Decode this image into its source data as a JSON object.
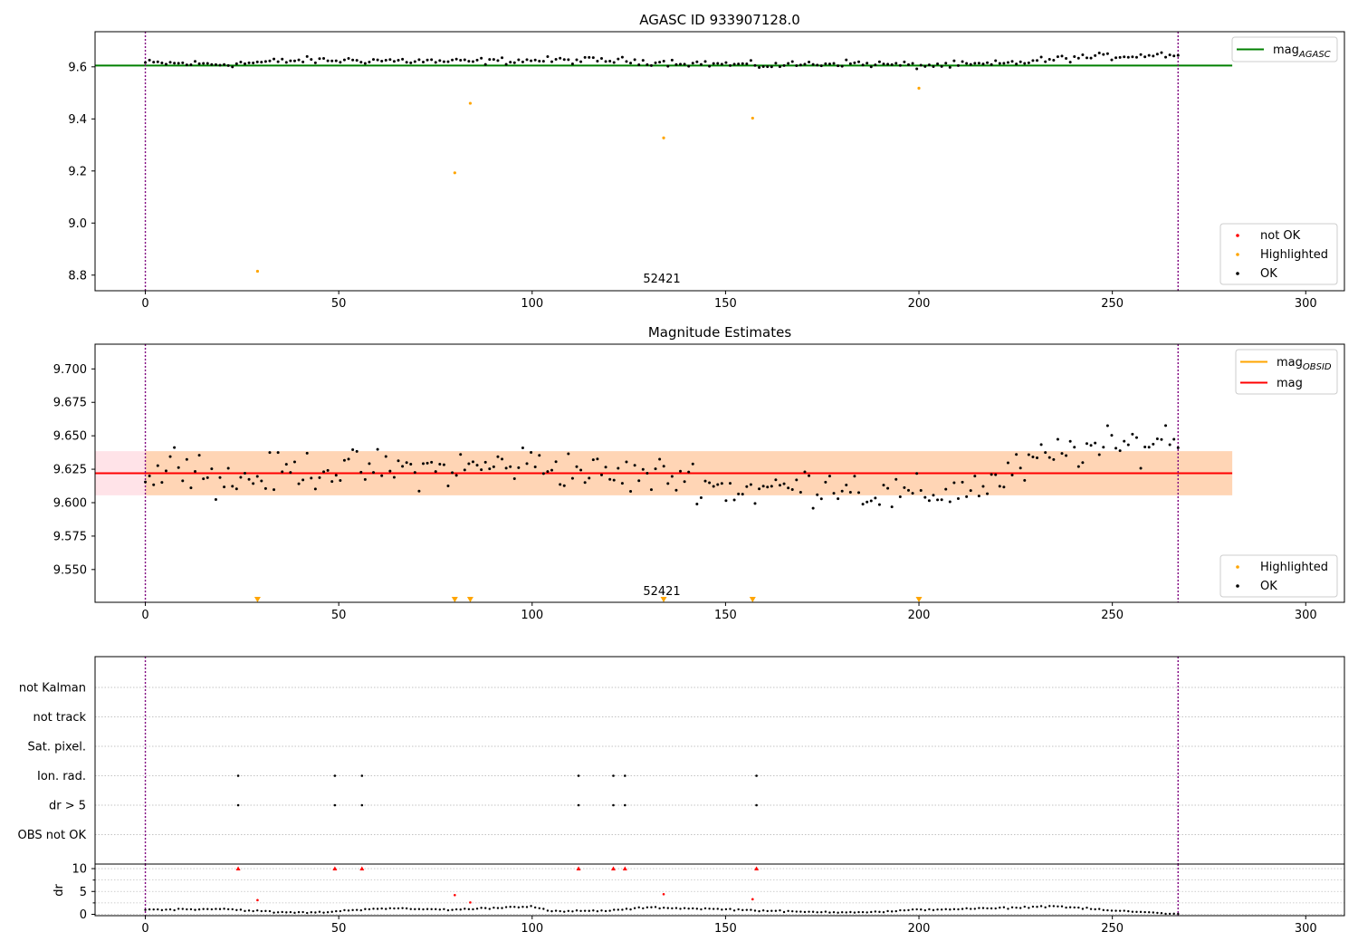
{
  "chart_data": [
    {
      "type": "scatter",
      "title": "AGASC ID 933907128.0",
      "annotation": "52421",
      "xlim": [
        -13,
        310
      ],
      "ylim": [
        8.74,
        9.735
      ],
      "xticks": [
        0,
        50,
        100,
        150,
        200,
        250,
        300
      ],
      "yticks": [
        8.8,
        9.0,
        9.2,
        9.4,
        9.6
      ],
      "ytick_labels": [
        "8.8",
        "9.0",
        "9.2",
        "9.4",
        "9.6"
      ],
      "vlines": [
        0,
        267
      ],
      "hline": {
        "name": "mag",
        "subscript": "AGASC",
        "value": 9.605,
        "xmax": 281,
        "color": "#008000"
      },
      "legend_lines": [
        {
          "name": "mag",
          "subscript": "AGASC",
          "color": "#008000"
        }
      ],
      "legend_points": [
        {
          "name": "not OK",
          "color": "#ff0000"
        },
        {
          "name": "Highlighted",
          "color": "#ffa500"
        },
        {
          "name": "OK",
          "color": "#000000"
        }
      ],
      "highlighted_points": {
        "x": [
          29,
          80,
          84,
          134,
          157,
          200
        ],
        "y": [
          8.815,
          9.193,
          9.46,
          9.327,
          9.403,
          9.518
        ]
      },
      "ok_points": {
        "smoothing": true,
        "x_start": 0,
        "x_end": 267,
        "knots_x": [
          0,
          20,
          40,
          60,
          80,
          100,
          120,
          140,
          160,
          180,
          200,
          220,
          240,
          250,
          267
        ],
        "knots_y": [
          9.615,
          9.61,
          9.625,
          9.625,
          9.62,
          9.625,
          9.625,
          9.615,
          9.605,
          9.615,
          9.605,
          9.61,
          9.635,
          9.64,
          9.65
        ],
        "noise": 0.012
      },
      "grid": false
    },
    {
      "type": "scatter",
      "title": "Magnitude Estimates",
      "annotation": "52421",
      "xlim": [
        -13,
        310
      ],
      "ylim": [
        9.5255,
        9.7185
      ],
      "xticks": [
        0,
        50,
        100,
        150,
        200,
        250,
        300
      ],
      "yticks": [
        9.55,
        9.575,
        9.6,
        9.625,
        9.65,
        9.675,
        9.7
      ],
      "ytick_labels": [
        "9.550",
        "9.575",
        "9.600",
        "9.625",
        "9.650",
        "9.675",
        "9.700"
      ],
      "vlines": [
        0,
        267
      ],
      "band_mag": {
        "low": 9.6055,
        "high": 9.6385,
        "xmax": 281,
        "color": "#ffc0cb"
      },
      "band_obsid": {
        "low": 9.6055,
        "high": 9.6385,
        "xmin": 0,
        "xmax": 281,
        "color": "#ffa500"
      },
      "mag_line": {
        "value": 9.622,
        "xmin": -13,
        "xmax": 281,
        "color": "#ff0000"
      },
      "legend_lines": [
        {
          "name": "mag",
          "subscript": "OBSID",
          "color": "#ffa500"
        },
        {
          "name": "mag",
          "subscript": "",
          "color": "#ff0000"
        }
      ],
      "legend_points": [
        {
          "name": "Highlighted",
          "color": "#ffa500"
        },
        {
          "name": "OK",
          "color": "#000000"
        }
      ],
      "highlighted_markers": {
        "x": [
          29,
          80,
          84,
          134,
          157,
          200
        ],
        "y": 9.5275
      },
      "ok_points": {
        "smoothing": true,
        "x_start": 0,
        "x_end": 267,
        "knots_x": [
          0,
          10,
          20,
          40,
          60,
          80,
          100,
          120,
          140,
          150,
          160,
          180,
          190,
          200,
          220,
          230,
          240,
          250,
          267
        ],
        "knots_y": [
          9.615,
          9.635,
          9.615,
          9.625,
          9.625,
          9.625,
          9.63,
          9.62,
          9.62,
          9.61,
          9.61,
          9.615,
          9.605,
          9.605,
          9.615,
          9.63,
          9.64,
          9.64,
          9.65
        ],
        "noise": 0.013
      },
      "grid": false
    },
    {
      "type": "scatter",
      "title": "",
      "xlim": [
        -13,
        310
      ],
      "vlines": [
        0,
        267
      ],
      "flag_labels": [
        "not Kalman",
        "not track",
        "Sat. pixel.",
        "Ion. rad.",
        "dr > 5",
        "OBS not OK"
      ],
      "flag_points": [
        {
          "flag": "Ion. rad.",
          "x": [
            24,
            49,
            56,
            112,
            121,
            124,
            158
          ]
        },
        {
          "flag": "dr > 5",
          "x": [
            24,
            49,
            56,
            112,
            121,
            124,
            158
          ]
        }
      ],
      "grid": true
    },
    {
      "type": "scatter",
      "title": "",
      "xlim": [
        -13,
        310
      ],
      "ylim": [
        -0.3,
        11
      ],
      "xticks": [
        0,
        50,
        100,
        150,
        200,
        250,
        300
      ],
      "yticks": [
        0,
        5,
        10
      ],
      "ytick_labels": [
        "0",
        "5",
        "10"
      ],
      "ylabel": "dr",
      "vlines": [
        0,
        267
      ],
      "red_triangles": {
        "x": [
          24,
          49,
          56,
          112,
          121,
          124,
          158
        ],
        "y": 10
      },
      "red_points": {
        "x": [
          29,
          80,
          84,
          134,
          157
        ],
        "y": [
          3.1,
          4.2,
          2.6,
          4.4,
          3.3
        ]
      },
      "ok_points": {
        "smoothing": true,
        "x_start": 0,
        "x_end": 267,
        "knots_x": [
          0,
          20,
          35,
          45,
          60,
          80,
          100,
          105,
          120,
          130,
          150,
          170,
          190,
          200,
          220,
          235,
          250,
          267
        ],
        "knots_y": [
          1.0,
          1.2,
          0.4,
          0.4,
          1.3,
          1.0,
          1.8,
          0.6,
          0.8,
          1.5,
          1.1,
          0.5,
          0.5,
          1.0,
          1.3,
          1.8,
          0.8,
          0.1
        ],
        "noise": 0.15
      },
      "grid": true
    }
  ]
}
